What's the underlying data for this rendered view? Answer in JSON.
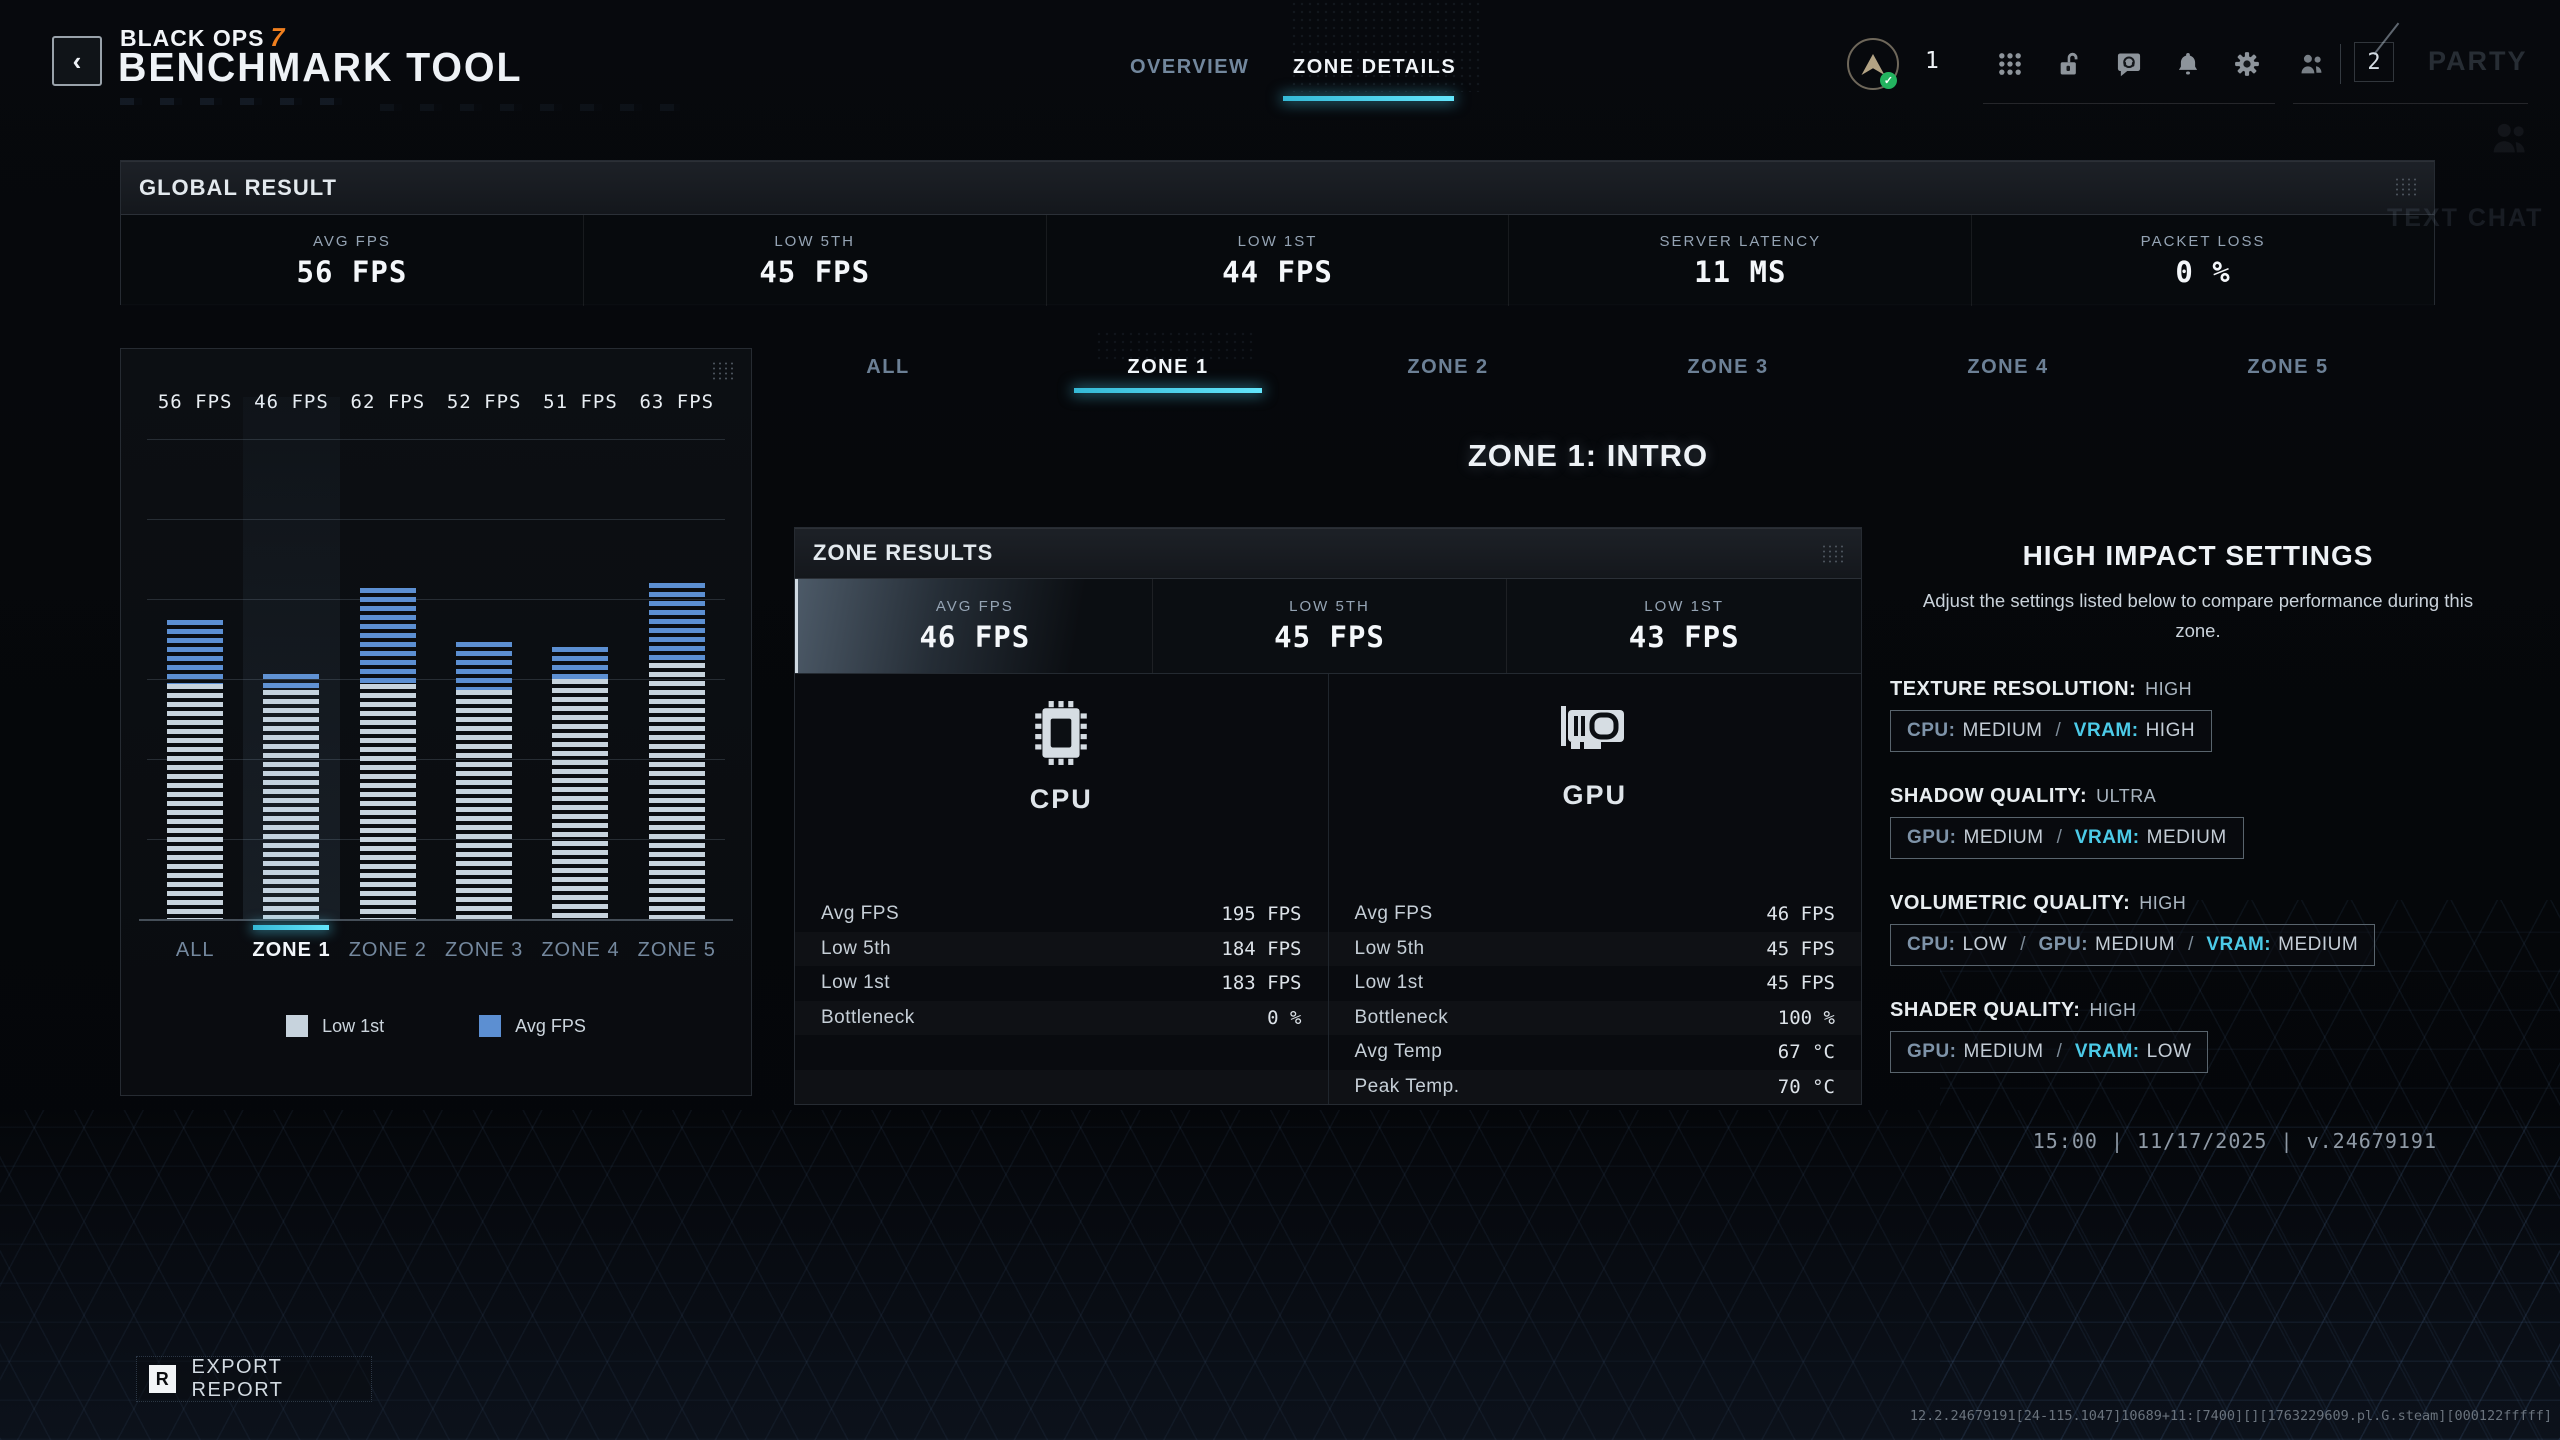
{
  "colors": {
    "accent": "#4ccbe8",
    "bar_avg": "#5c8fd2",
    "bar_low": "#c7d3dd",
    "orange": "#f07f1e"
  },
  "header": {
    "back_glyph": "‹",
    "brand_name": "BLACK OPS",
    "brand_number": "7",
    "brand_title": "BENCHMARK TOOL",
    "tabs": [
      {
        "label": "OVERVIEW",
        "active": false
      },
      {
        "label": "ZONE DETAILS",
        "active": true
      }
    ],
    "rank_level": "1",
    "party_count": "2",
    "party_label": "PARTY"
  },
  "background_text": "TEXT CHAT",
  "global_result": {
    "title": "GLOBAL RESULT",
    "stats": [
      {
        "label": "AVG FPS",
        "value": "56 FPS"
      },
      {
        "label": "LOW 5TH",
        "value": "45 FPS"
      },
      {
        "label": "LOW 1ST",
        "value": "44 FPS"
      },
      {
        "label": "SERVER LATENCY",
        "value": "11 MS"
      },
      {
        "label": "PACKET LOSS",
        "value": "0 %"
      }
    ]
  },
  "chart_data": {
    "type": "bar",
    "categories": [
      "ALL",
      "ZONE 1",
      "ZONE 2",
      "ZONE 3",
      "ZONE 4",
      "ZONE 5"
    ],
    "series": [
      {
        "name": "Avg FPS",
        "values": [
          56,
          46,
          62,
          52,
          51,
          63
        ],
        "color": "#5c8fd2"
      },
      {
        "name": "Low 1st",
        "values": [
          44,
          43,
          44,
          43,
          45,
          48
        ],
        "color": "#c7d3dd"
      }
    ],
    "bar_labels": [
      "56 FPS",
      "46 FPS",
      "62 FPS",
      "52 FPS",
      "51 FPS",
      "63 FPS"
    ],
    "selected_category": "ZONE 1",
    "ylim": [
      0,
      90
    ],
    "gridline_step": 15,
    "grid": true,
    "legend_position": "bottom"
  },
  "zone_tabs": [
    "ALL",
    "ZONE 1",
    "ZONE 2",
    "ZONE 3",
    "ZONE 4",
    "ZONE 5"
  ],
  "zone_heading": "ZONE 1: INTRO",
  "zone_results": {
    "title": "ZONE RESULTS",
    "stats": [
      {
        "label": "AVG FPS",
        "value": "46 FPS"
      },
      {
        "label": "LOW 5TH",
        "value": "45 FPS"
      },
      {
        "label": "LOW 1ST",
        "value": "43 FPS"
      }
    ],
    "cpu": {
      "label": "CPU",
      "rows": [
        {
          "label": "Avg FPS",
          "value": "195 FPS"
        },
        {
          "label": "Low 5th",
          "value": "184 FPS"
        },
        {
          "label": "Low 1st",
          "value": "183 FPS"
        },
        {
          "label": "Bottleneck",
          "value": "0 %"
        }
      ]
    },
    "gpu": {
      "label": "GPU",
      "rows": [
        {
          "label": "Avg FPS",
          "value": "46 FPS"
        },
        {
          "label": "Low 5th",
          "value": "45 FPS"
        },
        {
          "label": "Low 1st",
          "value": "45 FPS"
        },
        {
          "label": "Bottleneck",
          "value": "100 %"
        },
        {
          "label": "Avg Temp",
          "value": "67 °C"
        },
        {
          "label": "Peak Temp.",
          "value": "70 °C"
        }
      ]
    }
  },
  "settings": {
    "title": "HIGH IMPACT SETTINGS",
    "subtitle": "Adjust the settings listed below to compare performance during this zone.",
    "separator": "/",
    "items": [
      {
        "name": "TEXTURE RESOLUTION:",
        "value": "HIGH",
        "impacts": [
          {
            "label": "CPU:",
            "value": "MEDIUM"
          },
          {
            "label": "VRAM:",
            "value": "HIGH"
          }
        ]
      },
      {
        "name": "SHADOW QUALITY:",
        "value": "ULTRA",
        "impacts": [
          {
            "label": "GPU:",
            "value": "MEDIUM"
          },
          {
            "label": "VRAM:",
            "value": "MEDIUM"
          }
        ]
      },
      {
        "name": "VOLUMETRIC QUALITY:",
        "value": "HIGH",
        "impacts": [
          {
            "label": "CPU:",
            "value": "LOW"
          },
          {
            "label": "GPU:",
            "value": "MEDIUM"
          },
          {
            "label": "VRAM:",
            "value": "MEDIUM"
          }
        ]
      },
      {
        "name": "SHADER QUALITY:",
        "value": "HIGH",
        "impacts": [
          {
            "label": "GPU:",
            "value": "MEDIUM"
          },
          {
            "label": "VRAM:",
            "value": "LOW"
          }
        ]
      }
    ]
  },
  "footer": {
    "timestamp": "15:00 | 11/17/2025 | v.24679191",
    "export_key": "R",
    "export_label": "EXPORT REPORT",
    "build_string": "12.2.24679191[24-115.1047]10689+11:[7400][][1763229609.pl.G.steam][000122fffff]"
  }
}
